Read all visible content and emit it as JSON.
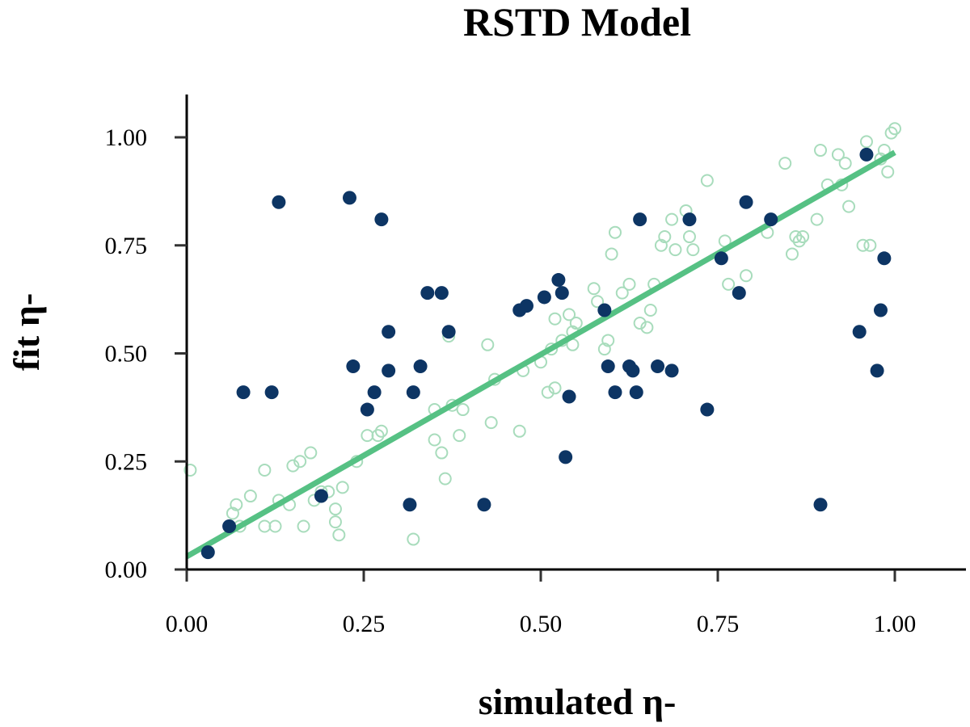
{
  "chart_data": {
    "type": "scatter",
    "title": "RSTD Model",
    "xlabel": "simulated η-",
    "ylabel": "fit η-",
    "xlim": [
      0.0,
      1.1
    ],
    "ylim": [
      -0.02,
      1.1
    ],
    "xticks": [
      "0.00",
      "0.25",
      "0.50",
      "0.75",
      "1.00"
    ],
    "yticks": [
      "0.00",
      "0.25",
      "0.50",
      "0.75",
      "1.00"
    ],
    "grid": false,
    "legend": "none",
    "colors": {
      "filled": "#0d3564",
      "hollow": "#a8dcbc",
      "fit_line": "#56c184"
    },
    "series": [
      {
        "style": "filled",
        "points": [
          [
            0.03,
            0.04
          ],
          [
            0.06,
            0.1
          ],
          [
            0.08,
            0.41
          ],
          [
            0.12,
            0.41
          ],
          [
            0.13,
            0.85
          ],
          [
            0.19,
            0.17
          ],
          [
            0.23,
            0.86
          ],
          [
            0.235,
            0.47
          ],
          [
            0.255,
            0.37
          ],
          [
            0.265,
            0.41
          ],
          [
            0.275,
            0.81
          ],
          [
            0.285,
            0.46
          ],
          [
            0.285,
            0.55
          ],
          [
            0.315,
            0.15
          ],
          [
            0.32,
            0.41
          ],
          [
            0.33,
            0.47
          ],
          [
            0.34,
            0.64
          ],
          [
            0.36,
            0.64
          ],
          [
            0.37,
            0.55
          ],
          [
            0.42,
            0.15
          ],
          [
            0.47,
            0.6
          ],
          [
            0.48,
            0.61
          ],
          [
            0.505,
            0.63
          ],
          [
            0.525,
            0.67
          ],
          [
            0.53,
            0.64
          ],
          [
            0.535,
            0.26
          ],
          [
            0.54,
            0.4
          ],
          [
            0.59,
            0.6
          ],
          [
            0.595,
            0.47
          ],
          [
            0.605,
            0.41
          ],
          [
            0.625,
            0.47
          ],
          [
            0.63,
            0.46
          ],
          [
            0.635,
            0.41
          ],
          [
            0.64,
            0.81
          ],
          [
            0.665,
            0.47
          ],
          [
            0.685,
            0.46
          ],
          [
            0.71,
            0.81
          ],
          [
            0.735,
            0.37
          ],
          [
            0.755,
            0.72
          ],
          [
            0.78,
            0.64
          ],
          [
            0.79,
            0.85
          ],
          [
            0.825,
            0.81
          ],
          [
            0.895,
            0.15
          ],
          [
            0.95,
            0.55
          ],
          [
            0.96,
            0.96
          ],
          [
            0.975,
            0.46
          ],
          [
            0.98,
            0.6
          ],
          [
            0.985,
            0.72
          ]
        ]
      },
      {
        "style": "hollow",
        "points": [
          [
            0.005,
            0.23
          ],
          [
            0.065,
            0.13
          ],
          [
            0.07,
            0.15
          ],
          [
            0.075,
            0.1
          ],
          [
            0.09,
            0.17
          ],
          [
            0.11,
            0.23
          ],
          [
            0.11,
            0.1
          ],
          [
            0.125,
            0.1
          ],
          [
            0.13,
            0.16
          ],
          [
            0.145,
            0.15
          ],
          [
            0.15,
            0.24
          ],
          [
            0.16,
            0.25
          ],
          [
            0.165,
            0.1
          ],
          [
            0.175,
            0.27
          ],
          [
            0.18,
            0.16
          ],
          [
            0.19,
            0.18
          ],
          [
            0.2,
            0.18
          ],
          [
            0.21,
            0.14
          ],
          [
            0.21,
            0.11
          ],
          [
            0.215,
            0.08
          ],
          [
            0.22,
            0.19
          ],
          [
            0.24,
            0.25
          ],
          [
            0.255,
            0.31
          ],
          [
            0.27,
            0.31
          ],
          [
            0.275,
            0.32
          ],
          [
            0.32,
            0.07
          ],
          [
            0.35,
            0.3
          ],
          [
            0.35,
            0.37
          ],
          [
            0.36,
            0.27
          ],
          [
            0.365,
            0.21
          ],
          [
            0.37,
            0.54
          ],
          [
            0.375,
            0.38
          ],
          [
            0.385,
            0.31
          ],
          [
            0.39,
            0.37
          ],
          [
            0.425,
            0.52
          ],
          [
            0.43,
            0.34
          ],
          [
            0.435,
            0.44
          ],
          [
            0.47,
            0.32
          ],
          [
            0.475,
            0.46
          ],
          [
            0.5,
            0.48
          ],
          [
            0.51,
            0.41
          ],
          [
            0.515,
            0.51
          ],
          [
            0.52,
            0.42
          ],
          [
            0.52,
            0.58
          ],
          [
            0.53,
            0.53
          ],
          [
            0.54,
            0.59
          ],
          [
            0.545,
            0.52
          ],
          [
            0.545,
            0.55
          ],
          [
            0.55,
            0.57
          ],
          [
            0.575,
            0.65
          ],
          [
            0.58,
            0.62
          ],
          [
            0.59,
            0.51
          ],
          [
            0.595,
            0.53
          ],
          [
            0.6,
            0.73
          ],
          [
            0.605,
            0.78
          ],
          [
            0.615,
            0.64
          ],
          [
            0.625,
            0.66
          ],
          [
            0.64,
            0.57
          ],
          [
            0.65,
            0.56
          ],
          [
            0.655,
            0.6
          ],
          [
            0.66,
            0.66
          ],
          [
            0.67,
            0.75
          ],
          [
            0.675,
            0.77
          ],
          [
            0.685,
            0.81
          ],
          [
            0.69,
            0.74
          ],
          [
            0.705,
            0.83
          ],
          [
            0.71,
            0.77
          ],
          [
            0.715,
            0.74
          ],
          [
            0.735,
            0.9
          ],
          [
            0.76,
            0.76
          ],
          [
            0.765,
            0.66
          ],
          [
            0.79,
            0.68
          ],
          [
            0.82,
            0.78
          ],
          [
            0.845,
            0.94
          ],
          [
            0.855,
            0.73
          ],
          [
            0.86,
            0.77
          ],
          [
            0.865,
            0.76
          ],
          [
            0.87,
            0.77
          ],
          [
            0.89,
            0.81
          ],
          [
            0.895,
            0.97
          ],
          [
            0.905,
            0.89
          ],
          [
            0.92,
            0.96
          ],
          [
            0.925,
            0.89
          ],
          [
            0.93,
            0.94
          ],
          [
            0.935,
            0.84
          ],
          [
            0.955,
            0.75
          ],
          [
            0.96,
            0.99
          ],
          [
            0.965,
            0.75
          ],
          [
            0.98,
            0.95
          ],
          [
            0.985,
            0.97
          ],
          [
            0.99,
            0.92
          ],
          [
            0.995,
            1.01
          ],
          [
            1.0,
            1.02
          ]
        ]
      }
    ],
    "fit_line": {
      "x": [
        0.0,
        1.0
      ],
      "y": [
        0.03,
        0.965
      ]
    }
  }
}
